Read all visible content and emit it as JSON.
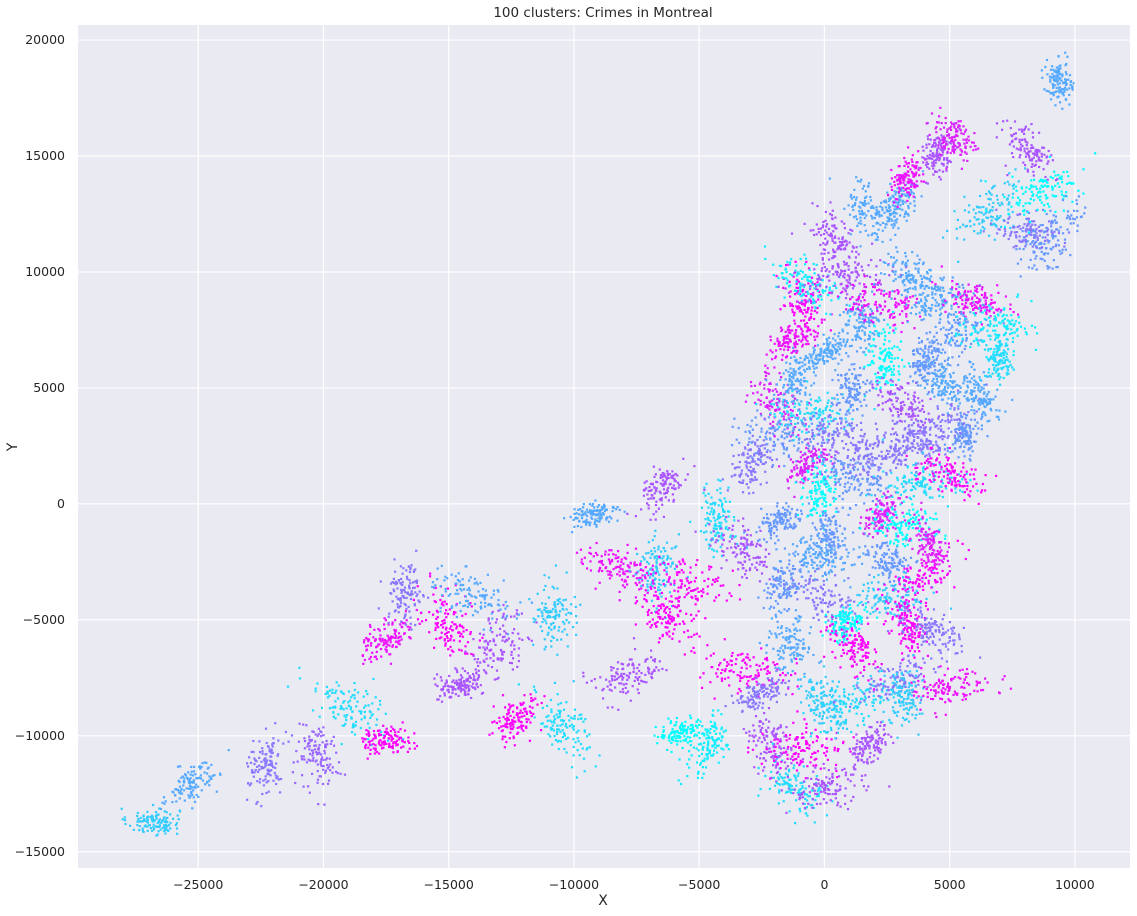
{
  "chart_data": {
    "type": "scatter",
    "title": "100 clusters: Crimes in Montreal",
    "xlabel": "X",
    "ylabel": "Y",
    "xlim": [
      -29800,
      12200
    ],
    "ylim": [
      -15700,
      20650
    ],
    "xticks": [
      -25000,
      -20000,
      -15000,
      -10000,
      -5000,
      0,
      5000,
      10000
    ],
    "xtick_labels": [
      "−25000",
      "−20000",
      "−15000",
      "−10000",
      "−5000",
      "0",
      "5000",
      "10000"
    ],
    "yticks": [
      -15000,
      -10000,
      -5000,
      0,
      5000,
      10000,
      15000,
      20000
    ],
    "ytick_labels": [
      "−15000",
      "−10000",
      "−5000",
      "0",
      "5000",
      "10000",
      "15000",
      "20000"
    ],
    "grid": true,
    "background": "#eaeaf2",
    "grid_color": "#ffffff",
    "colormap": "cool",
    "colormap_range": [
      "#00ffff",
      "#ff00ff"
    ],
    "n_clusters": 100,
    "point_count": 12000,
    "clusters": [
      {
        "id": 0,
        "x": -26800,
        "y": -13700,
        "color": "#33ccff"
      },
      {
        "id": 1,
        "x": -25200,
        "y": -12000,
        "color": "#55aaff"
      },
      {
        "id": 2,
        "x": -22300,
        "y": -11200,
        "color": "#8877ff"
      },
      {
        "id": 3,
        "x": -20300,
        "y": -10800,
        "color": "#9966ff"
      },
      {
        "id": 4,
        "x": -19000,
        "y": -8800,
        "color": "#22ddff"
      },
      {
        "id": 5,
        "x": -17500,
        "y": -10200,
        "color": "#ff00ff"
      },
      {
        "id": 6,
        "x": -17500,
        "y": -5800,
        "color": "#ee11ff"
      },
      {
        "id": 7,
        "x": -16700,
        "y": -3800,
        "color": "#8877ff"
      },
      {
        "id": 8,
        "x": -15000,
        "y": -5200,
        "color": "#ff00ff"
      },
      {
        "id": 9,
        "x": -14000,
        "y": -4000,
        "color": "#55aaff"
      },
      {
        "id": 10,
        "x": -14500,
        "y": -7800,
        "color": "#aa55ff"
      },
      {
        "id": 11,
        "x": -12300,
        "y": -9300,
        "color": "#ff00ff"
      },
      {
        "id": 12,
        "x": -10800,
        "y": -4800,
        "color": "#33ccff"
      },
      {
        "id": 13,
        "x": -10400,
        "y": -9600,
        "color": "#22ddff"
      },
      {
        "id": 14,
        "x": -8200,
        "y": -2800,
        "color": "#ee11ff"
      },
      {
        "id": 15,
        "x": -9200,
        "y": -500,
        "color": "#55aaff"
      },
      {
        "id": 16,
        "x": -6500,
        "y": 600,
        "color": "#aa55ff"
      },
      {
        "id": 17,
        "x": -6700,
        "y": -2800,
        "color": "#33ccff"
      },
      {
        "id": 18,
        "x": -6300,
        "y": -4800,
        "color": "#ff00ff"
      },
      {
        "id": 19,
        "x": -5500,
        "y": -3400,
        "color": "#ff00ff"
      },
      {
        "id": 20,
        "x": -5700,
        "y": -9800,
        "color": "#00ffff"
      },
      {
        "id": 21,
        "x": -4600,
        "y": -10400,
        "color": "#11eeff"
      },
      {
        "id": 22,
        "x": -4300,
        "y": -800,
        "color": "#22ddff"
      },
      {
        "id": 23,
        "x": -3300,
        "y": -2000,
        "color": "#aa55ff"
      },
      {
        "id": 24,
        "x": -3000,
        "y": -7200,
        "color": "#ff00ff"
      },
      {
        "id": 25,
        "x": -2600,
        "y": -8200,
        "color": "#8877ff"
      },
      {
        "id": 26,
        "x": -2900,
        "y": 1800,
        "color": "#8877ff"
      },
      {
        "id": 27,
        "x": -2100,
        "y": -10300,
        "color": "#aa55ff"
      },
      {
        "id": 28,
        "x": -2000,
        "y": 4400,
        "color": "#dd22ff"
      },
      {
        "id": 29,
        "x": -1700,
        "y": 2900,
        "color": "#6699ff"
      },
      {
        "id": 30,
        "x": -1800,
        "y": -700,
        "color": "#6699ff"
      },
      {
        "id": 31,
        "x": -1600,
        "y": -3400,
        "color": "#6699ff"
      },
      {
        "id": 32,
        "x": -1400,
        "y": -6000,
        "color": "#55aaff"
      },
      {
        "id": 33,
        "x": -1200,
        "y": -12200,
        "color": "#22ddff"
      },
      {
        "id": 34,
        "x": -800,
        "y": -10600,
        "color": "#ff00ff"
      },
      {
        "id": 35,
        "x": -1300,
        "y": 7000,
        "color": "#ee11ff"
      },
      {
        "id": 36,
        "x": -1200,
        "y": 5400,
        "color": "#55aaff"
      },
      {
        "id": 37,
        "x": -900,
        "y": 8800,
        "color": "#ff00ff"
      },
      {
        "id": 38,
        "x": -700,
        "y": 9600,
        "color": "#11eeff"
      },
      {
        "id": 39,
        "x": -500,
        "y": 3900,
        "color": "#22ddff"
      },
      {
        "id": 40,
        "x": -600,
        "y": 1700,
        "color": "#dd22ff"
      },
      {
        "id": 41,
        "x": -200,
        "y": 600,
        "color": "#00ffff"
      },
      {
        "id": 42,
        "x": 0,
        "y": -8600,
        "color": "#33ccff"
      },
      {
        "id": 43,
        "x": 100,
        "y": -4200,
        "color": "#8877ff"
      },
      {
        "id": 44,
        "x": 100,
        "y": -12200,
        "color": "#aa55ff"
      },
      {
        "id": 45,
        "x": 200,
        "y": 6600,
        "color": "#55aaff"
      },
      {
        "id": 46,
        "x": 200,
        "y": -1500,
        "color": "#6699ff"
      },
      {
        "id": 47,
        "x": 400,
        "y": 11400,
        "color": "#aa55ff"
      },
      {
        "id": 48,
        "x": 600,
        "y": 3000,
        "color": "#8877ff"
      },
      {
        "id": 49,
        "x": 700,
        "y": 9800,
        "color": "#aa55ff"
      },
      {
        "id": 50,
        "x": 900,
        "y": -5100,
        "color": "#00ffff"
      },
      {
        "id": 51,
        "x": 1100,
        "y": 4900,
        "color": "#6699ff"
      },
      {
        "id": 52,
        "x": 1300,
        "y": -6300,
        "color": "#ff00ff"
      },
      {
        "id": 53,
        "x": 1300,
        "y": 1100,
        "color": "#6699ff"
      },
      {
        "id": 54,
        "x": 1200,
        "y": -8600,
        "color": "#22ddff"
      },
      {
        "id": 55,
        "x": 1800,
        "y": -10400,
        "color": "#aa55ff"
      },
      {
        "id": 56,
        "x": 1500,
        "y": 7800,
        "color": "#55aaff"
      },
      {
        "id": 57,
        "x": 1800,
        "y": 12500,
        "color": "#55aaff"
      },
      {
        "id": 58,
        "x": 2300,
        "y": 8600,
        "color": "#ee11ff"
      },
      {
        "id": 59,
        "x": 2100,
        "y": 2200,
        "color": "#8877ff"
      },
      {
        "id": 60,
        "x": 2300,
        "y": -500,
        "color": "#dd22ff"
      },
      {
        "id": 61,
        "x": 2400,
        "y": 6200,
        "color": "#00ffff"
      },
      {
        "id": 62,
        "x": 2600,
        "y": -2500,
        "color": "#6699ff"
      },
      {
        "id": 63,
        "x": 2700,
        "y": -4000,
        "color": "#33ccff"
      },
      {
        "id": 64,
        "x": 2900,
        "y": -7700,
        "color": "#8877ff"
      },
      {
        "id": 65,
        "x": 3000,
        "y": 13000,
        "color": "#55aaff"
      },
      {
        "id": 66,
        "x": 3200,
        "y": -8400,
        "color": "#33ccff"
      },
      {
        "id": 67,
        "x": 3200,
        "y": 4200,
        "color": "#aa55ff"
      },
      {
        "id": 68,
        "x": 3200,
        "y": -1000,
        "color": "#00ffff"
      },
      {
        "id": 69,
        "x": 3400,
        "y": 2600,
        "color": "#8877ff"
      },
      {
        "id": 70,
        "x": 3300,
        "y": 14000,
        "color": "#ee11ff"
      },
      {
        "id": 71,
        "x": 3400,
        "y": -5300,
        "color": "#ff00ff"
      },
      {
        "id": 72,
        "x": 3600,
        "y": 9800,
        "color": "#55aaff"
      },
      {
        "id": 73,
        "x": 3800,
        "y": 900,
        "color": "#22ddff"
      },
      {
        "id": 74,
        "x": 3900,
        "y": -3200,
        "color": "#ff00ff"
      },
      {
        "id": 75,
        "x": 4000,
        "y": 6200,
        "color": "#6699ff"
      },
      {
        "id": 76,
        "x": 4200,
        "y": -1800,
        "color": "#dd22ff"
      },
      {
        "id": 77,
        "x": 4400,
        "y": -5500,
        "color": "#8877ff"
      },
      {
        "id": 78,
        "x": 4400,
        "y": 8800,
        "color": "#55aaff"
      },
      {
        "id": 79,
        "x": 4500,
        "y": 3000,
        "color": "#8877ff"
      },
      {
        "id": 80,
        "x": 4500,
        "y": 15000,
        "color": "#aa55ff"
      },
      {
        "id": 81,
        "x": 4800,
        "y": 5200,
        "color": "#55aaff"
      },
      {
        "id": 82,
        "x": 5000,
        "y": 1300,
        "color": "#ff00ff"
      },
      {
        "id": 83,
        "x": 5000,
        "y": -7900,
        "color": "#ee11ff"
      },
      {
        "id": 84,
        "x": 5300,
        "y": 7500,
        "color": "#6699ff"
      },
      {
        "id": 85,
        "x": 5600,
        "y": 3000,
        "color": "#6699ff"
      },
      {
        "id": 86,
        "x": 6200,
        "y": 4800,
        "color": "#55aaff"
      },
      {
        "id": 87,
        "x": 6100,
        "y": 8800,
        "color": "#ee11ff"
      },
      {
        "id": 88,
        "x": 6700,
        "y": 7600,
        "color": "#11eeff"
      },
      {
        "id": 89,
        "x": 6600,
        "y": 12600,
        "color": "#33ccff"
      },
      {
        "id": 90,
        "x": 7000,
        "y": 6300,
        "color": "#22ddff"
      },
      {
        "id": 91,
        "x": 8100,
        "y": 15300,
        "color": "#aa55ff"
      },
      {
        "id": 92,
        "x": 8200,
        "y": 11700,
        "color": "#8877ff"
      },
      {
        "id": 93,
        "x": 8700,
        "y": 13400,
        "color": "#00ffff"
      },
      {
        "id": 94,
        "x": 9000,
        "y": 11500,
        "color": "#6699ff"
      },
      {
        "id": 95,
        "x": 9400,
        "y": 18200,
        "color": "#55aaff"
      },
      {
        "id": 96,
        "x": 5200,
        "y": 15800,
        "color": "#dd22ff"
      },
      {
        "id": 97,
        "x": -200,
        "y": -2300,
        "color": "#55aaff"
      },
      {
        "id": 98,
        "x": -7800,
        "y": -7400,
        "color": "#aa55ff"
      },
      {
        "id": 99,
        "x": -13200,
        "y": -6300,
        "color": "#aa55ff"
      }
    ]
  }
}
